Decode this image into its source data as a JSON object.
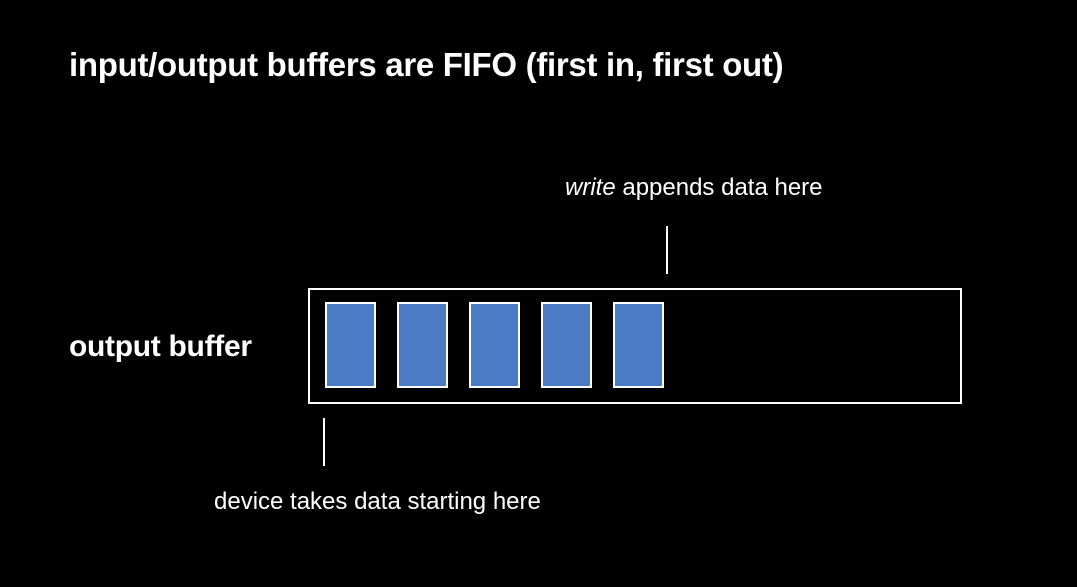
{
  "title": "input/output buffers are FIFO (first in, first out)",
  "buffer": {
    "label": "output buffer",
    "slot_count": 5,
    "slot_color": "#4a7bc4",
    "border_color": "#ffffff"
  },
  "annotations": {
    "write": {
      "emphasis": "write",
      "text": " appends data here"
    },
    "device": {
      "text": "device takes data starting here"
    }
  },
  "colors": {
    "background": "#000000",
    "text": "#ffffff"
  }
}
